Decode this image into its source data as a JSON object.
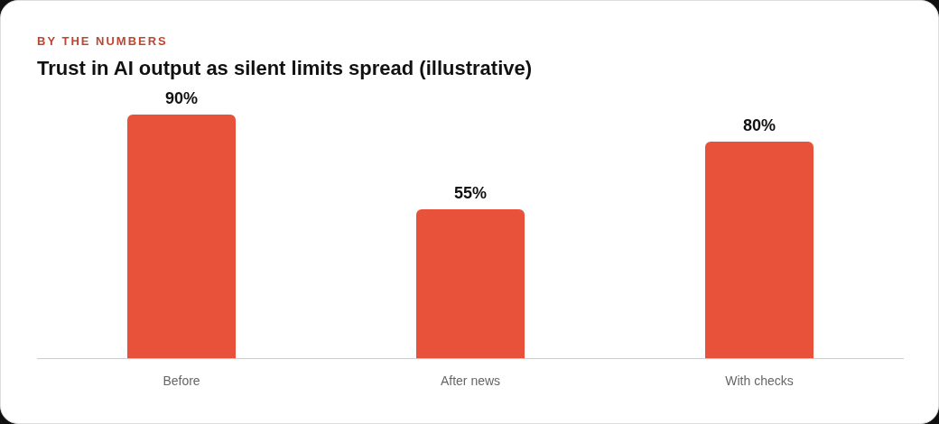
{
  "chart_data": {
    "type": "bar",
    "subtitle": "BY THE NUMBERS",
    "title": "Trust in AI output as silent limits spread (illustrative)",
    "categories": [
      "Before",
      "After news",
      "With checks"
    ],
    "values": [
      90,
      55,
      80
    ],
    "value_labels": [
      "90%",
      "55%",
      "80%"
    ],
    "color": "#e8513a"
  }
}
